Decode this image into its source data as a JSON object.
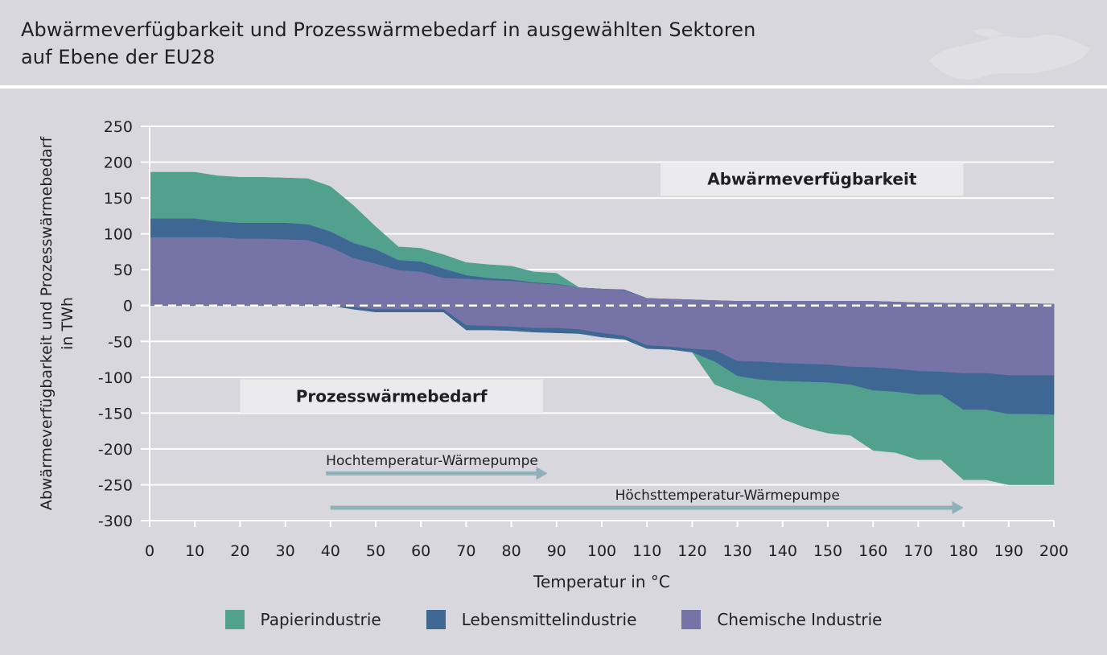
{
  "title": {
    "line1": "Abwärmeverfügbarkeit und Prozesswärmebedarf in ausgewählten Sektoren",
    "line2": "auf Ebene der EU28"
  },
  "colors": {
    "papier": "#52a08e",
    "lebensmittel": "#3f6794",
    "chemie": "#7674a6",
    "arrow": "#8fb0b6",
    "box": "#ebebee",
    "grid": "#ffffff",
    "background": "#d8d7dd"
  },
  "chart_data": {
    "type": "area",
    "title": "Abwärmeverfügbarkeit und Prozesswärmebedarf in ausgewählten Sektoren auf Ebene der EU28",
    "xlabel": "Temperatur in °C",
    "ylabel_line1": "Abwärmeverfügbarkeit und Prozesswärmebedarf",
    "ylabel_line2": "in TWh",
    "xlim": [
      0,
      200
    ],
    "ylim": [
      -300,
      250
    ],
    "xticks": [
      0,
      10,
      20,
      30,
      40,
      50,
      60,
      70,
      80,
      90,
      100,
      110,
      120,
      130,
      140,
      150,
      160,
      170,
      180,
      190,
      200
    ],
    "yticks": [
      250,
      200,
      150,
      100,
      50,
      0,
      -50,
      -100,
      -150,
      -200,
      -250,
      -300
    ],
    "grid": true,
    "stacking": "cumulative boundaries from zero; positive = Abwärmeverfügbarkeit, negative = Prozesswärmebedarf",
    "series": [
      {
        "name": "Chemische Industrie",
        "key": "chemie",
        "supply": [
          [
            0,
            95
          ],
          [
            10,
            95
          ],
          [
            15,
            95
          ],
          [
            20,
            93
          ],
          [
            25,
            93
          ],
          [
            30,
            92
          ],
          [
            35,
            91
          ],
          [
            40,
            81
          ],
          [
            45,
            66
          ],
          [
            50,
            58
          ],
          [
            55,
            49
          ],
          [
            60,
            47
          ],
          [
            65,
            38
          ],
          [
            70,
            37
          ],
          [
            75,
            35
          ],
          [
            80,
            34
          ],
          [
            85,
            31
          ],
          [
            90,
            29
          ],
          [
            95,
            25
          ],
          [
            100,
            23
          ],
          [
            105,
            21
          ],
          [
            110,
            10
          ],
          [
            115,
            9
          ],
          [
            120,
            8
          ],
          [
            125,
            7
          ],
          [
            130,
            6
          ],
          [
            140,
            6
          ],
          [
            150,
            6
          ],
          [
            160,
            6
          ],
          [
            170,
            4
          ],
          [
            180,
            3
          ],
          [
            190,
            3
          ],
          [
            200,
            2
          ]
        ],
        "demand": [
          [
            0,
            0
          ],
          [
            35,
            0
          ],
          [
            40,
            0
          ],
          [
            45,
            -2
          ],
          [
            50,
            -5
          ],
          [
            55,
            -5
          ],
          [
            60,
            -5
          ],
          [
            65,
            -5
          ],
          [
            70,
            -27
          ],
          [
            75,
            -28
          ],
          [
            80,
            -29
          ],
          [
            85,
            -31
          ],
          [
            90,
            -31
          ],
          [
            95,
            -33
          ],
          [
            100,
            -38
          ],
          [
            105,
            -42
          ],
          [
            110,
            -55
          ],
          [
            115,
            -57
          ],
          [
            120,
            -60
          ],
          [
            125,
            -62
          ],
          [
            130,
            -77
          ],
          [
            135,
            -78
          ],
          [
            140,
            -80
          ],
          [
            145,
            -81
          ],
          [
            150,
            -82
          ],
          [
            155,
            -85
          ],
          [
            160,
            -86
          ],
          [
            165,
            -88
          ],
          [
            170,
            -91
          ],
          [
            175,
            -92
          ],
          [
            180,
            -94
          ],
          [
            185,
            -94
          ],
          [
            190,
            -97
          ],
          [
            195,
            -97
          ],
          [
            200,
            -97
          ]
        ]
      },
      {
        "name": "Lebensmittelindustrie",
        "key": "lebensmittel",
        "supply": [
          [
            0,
            121
          ],
          [
            10,
            121
          ],
          [
            15,
            117
          ],
          [
            20,
            115
          ],
          [
            25,
            115
          ],
          [
            30,
            115
          ],
          [
            35,
            113
          ],
          [
            40,
            103
          ],
          [
            45,
            87
          ],
          [
            50,
            78
          ],
          [
            55,
            63
          ],
          [
            60,
            61
          ],
          [
            65,
            51
          ],
          [
            70,
            42
          ],
          [
            75,
            38
          ],
          [
            80,
            36
          ],
          [
            85,
            32
          ],
          [
            90,
            30
          ],
          [
            95,
            25
          ],
          [
            100,
            23
          ],
          [
            105,
            22
          ],
          [
            110,
            10
          ],
          [
            115,
            9
          ],
          [
            120,
            8
          ],
          [
            125,
            7
          ],
          [
            130,
            6
          ],
          [
            140,
            6
          ],
          [
            150,
            6
          ],
          [
            160,
            6
          ],
          [
            170,
            4
          ],
          [
            180,
            3
          ],
          [
            190,
            3
          ],
          [
            200,
            2
          ]
        ],
        "demand": [
          [
            0,
            0
          ],
          [
            35,
            0
          ],
          [
            40,
            0
          ],
          [
            45,
            -5
          ],
          [
            50,
            -9
          ],
          [
            55,
            -9
          ],
          [
            60,
            -9
          ],
          [
            65,
            -9
          ],
          [
            70,
            -34
          ],
          [
            75,
            -34
          ],
          [
            80,
            -35
          ],
          [
            85,
            -37
          ],
          [
            90,
            -38
          ],
          [
            95,
            -39
          ],
          [
            100,
            -44
          ],
          [
            105,
            -47
          ],
          [
            110,
            -60
          ],
          [
            115,
            -61
          ],
          [
            120,
            -65
          ],
          [
            125,
            -78
          ],
          [
            130,
            -98
          ],
          [
            135,
            -103
          ],
          [
            140,
            -105
          ],
          [
            145,
            -106
          ],
          [
            150,
            -107
          ],
          [
            155,
            -110
          ],
          [
            160,
            -118
          ],
          [
            165,
            -120
          ],
          [
            170,
            -124
          ],
          [
            175,
            -124
          ],
          [
            180,
            -145
          ],
          [
            185,
            -145
          ],
          [
            190,
            -151
          ],
          [
            195,
            -151
          ],
          [
            200,
            -152
          ]
        ]
      },
      {
        "name": "Papierindustrie",
        "key": "papier",
        "supply": [
          [
            0,
            186
          ],
          [
            10,
            186
          ],
          [
            15,
            181
          ],
          [
            20,
            179
          ],
          [
            25,
            179
          ],
          [
            30,
            178
          ],
          [
            35,
            177
          ],
          [
            40,
            166
          ],
          [
            45,
            140
          ],
          [
            50,
            110
          ],
          [
            55,
            82
          ],
          [
            60,
            80
          ],
          [
            65,
            71
          ],
          [
            70,
            60
          ],
          [
            75,
            57
          ],
          [
            80,
            55
          ],
          [
            85,
            47
          ],
          [
            90,
            45
          ],
          [
            95,
            25
          ],
          [
            100,
            23
          ],
          [
            105,
            22
          ],
          [
            110,
            10
          ],
          [
            115,
            9
          ],
          [
            120,
            8
          ],
          [
            125,
            7
          ],
          [
            130,
            6
          ],
          [
            140,
            6
          ],
          [
            150,
            6
          ],
          [
            160,
            6
          ],
          [
            170,
            4
          ],
          [
            180,
            3
          ],
          [
            190,
            3
          ],
          [
            200,
            2
          ]
        ],
        "demand": [
          [
            0,
            0
          ],
          [
            35,
            0
          ],
          [
            40,
            0
          ],
          [
            45,
            -5
          ],
          [
            50,
            -9
          ],
          [
            55,
            -9
          ],
          [
            60,
            -9
          ],
          [
            65,
            -9
          ],
          [
            70,
            -34
          ],
          [
            75,
            -34
          ],
          [
            80,
            -35
          ],
          [
            85,
            -37
          ],
          [
            90,
            -38
          ],
          [
            95,
            -39
          ],
          [
            100,
            -44
          ],
          [
            105,
            -47
          ],
          [
            110,
            -60
          ],
          [
            115,
            -61
          ],
          [
            120,
            -65
          ],
          [
            125,
            -110
          ],
          [
            130,
            -122
          ],
          [
            135,
            -133
          ],
          [
            140,
            -158
          ],
          [
            145,
            -170
          ],
          [
            150,
            -178
          ],
          [
            155,
            -181
          ],
          [
            160,
            -202
          ],
          [
            165,
            -205
          ],
          [
            170,
            -215
          ],
          [
            175,
            -215
          ],
          [
            180,
            -243
          ],
          [
            185,
            -243
          ],
          [
            190,
            -250
          ],
          [
            195,
            -250
          ],
          [
            200,
            -250
          ]
        ]
      }
    ],
    "zero_line": "dashed",
    "label_boxes": [
      {
        "text": "Abwärmeverfügbarkeit",
        "x_from": 113,
        "x_to": 180,
        "y_from": 153,
        "y_to": 200
      },
      {
        "text": "Prozesswärmebedarf",
        "x_from": 20,
        "x_to": 87,
        "y_from": -150,
        "y_to": -103
      }
    ],
    "arrows": [
      {
        "text": "Hochtemperatur-Wärmepumpe",
        "x_from": 39,
        "x_to": 88,
        "y": -234
      },
      {
        "text": "Höchsttemperatur-Wärmepumpe",
        "x_from": 40,
        "x_to": 180,
        "y": -282
      }
    ],
    "legend": [
      "Papierindustrie",
      "Lebensmittelindustrie",
      "Chemische Industrie"
    ],
    "legend_position": "bottom-center"
  }
}
